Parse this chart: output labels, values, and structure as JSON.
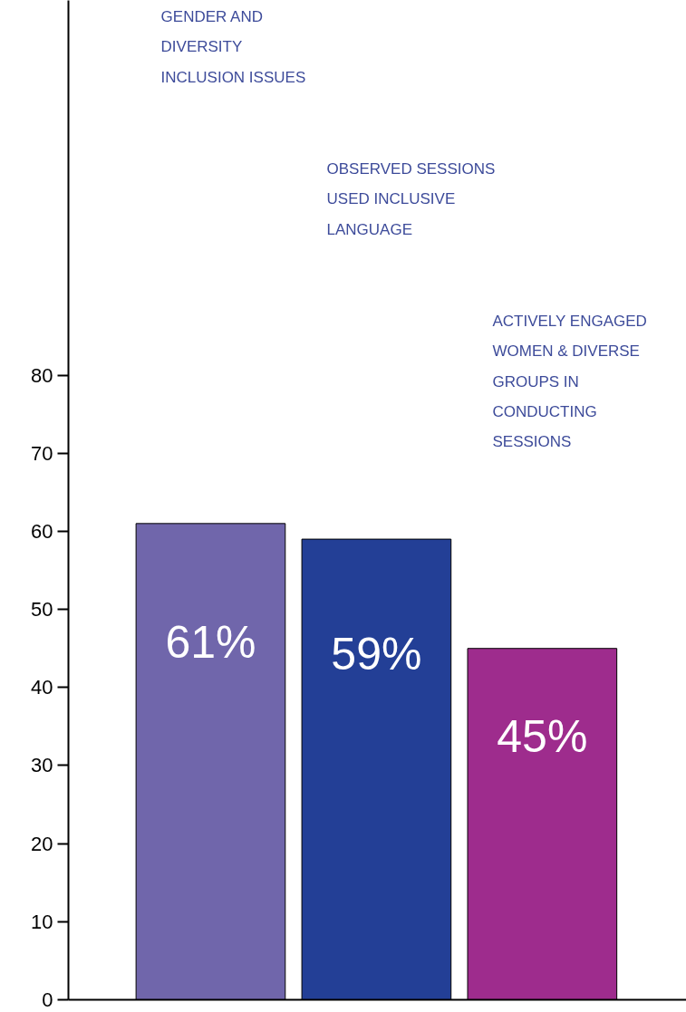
{
  "chart_data": {
    "type": "bar",
    "categories": [
      "GENDER AND DIVERSITY INCLUSION ISSUES",
      "OBSERVED SESSIONS USED INCLUSIVE LANGUAGE",
      "ACTIVELY ENGAGED WOMEN & DIVERSE GROUPS IN CONDUCTING SESSIONS"
    ],
    "values": [
      61,
      59,
      45
    ],
    "colors": [
      "#7066ab",
      "#233f96",
      "#9e2c8d"
    ],
    "value_labels": [
      "61%",
      "59%",
      "45%"
    ],
    "ylim": [
      0,
      128
    ],
    "yticks": [
      0,
      10,
      20,
      30,
      40,
      50,
      60,
      70,
      80
    ],
    "grid": false,
    "tick_labels": "y"
  }
}
